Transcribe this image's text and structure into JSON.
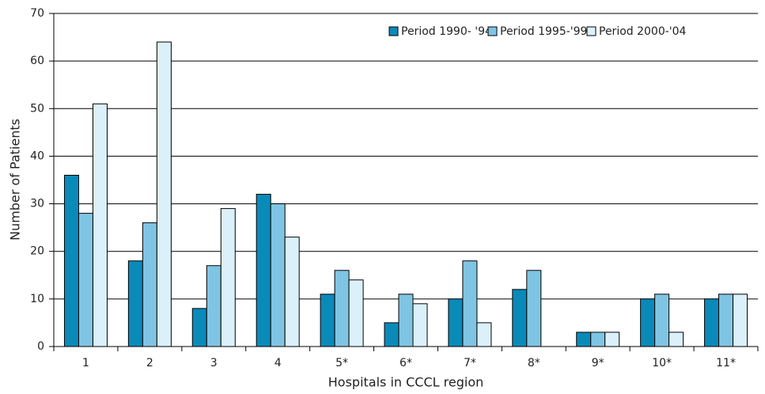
{
  "chart_data": {
    "type": "bar",
    "x_label": "Hospitals in CCCL region",
    "y_label": "Number of Patients",
    "categories": [
      "1",
      "2",
      "3",
      "4",
      "5*",
      "6*",
      "7*",
      "8*",
      "9*",
      "10*",
      "11*"
    ],
    "series": [
      {
        "name": "Period 1990- '94",
        "color": "#0a8ab9",
        "values": [
          36,
          18,
          8,
          32,
          11,
          5,
          10,
          12,
          3,
          10,
          10
        ]
      },
      {
        "name": "Period 1995-'99",
        "color": "#80c4e4",
        "values": [
          28,
          26,
          17,
          30,
          16,
          11,
          18,
          16,
          3,
          11,
          11
        ]
      },
      {
        "name": "Period 2000-'04",
        "color": "#dcf0f9",
        "values": [
          51,
          64,
          29,
          23,
          14,
          9,
          5,
          0,
          3,
          3,
          11
        ]
      }
    ],
    "ylim": [
      0,
      70
    ],
    "yticks": [
      0,
      10,
      20,
      30,
      40,
      50,
      60,
      70
    ],
    "grid": true,
    "legend": "upper right"
  }
}
